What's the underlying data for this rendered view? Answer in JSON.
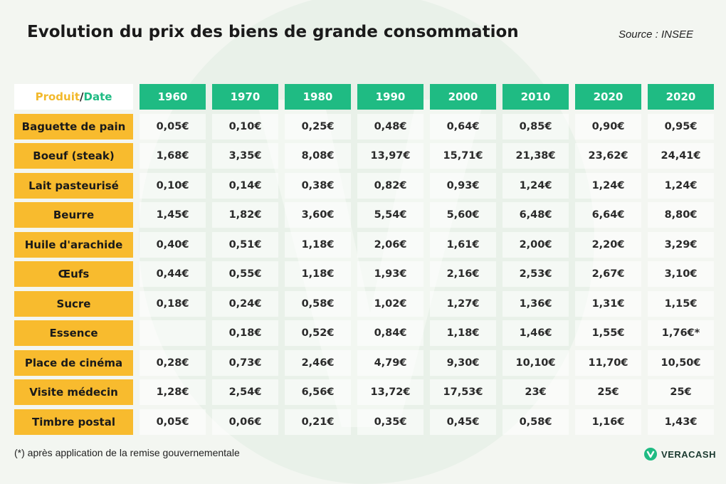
{
  "title": "Evolution du prix des biens de grande consommation",
  "source": "Source : INSEE",
  "header": {
    "product": "Produit",
    "slash": "/",
    "date": "Date"
  },
  "footnote": "(*) après application de la remise gouvernementale",
  "logo": {
    "text": "VERACASH"
  },
  "colors": {
    "green": "#1fbb83",
    "yellow": "#f8bb2e",
    "background": "#f3f6f1"
  },
  "chart_data": {
    "type": "table",
    "title": "Evolution du prix des biens de grande consommation",
    "columns": [
      "1960",
      "1970",
      "1980",
      "1990",
      "2000",
      "2010",
      "2020",
      "2020"
    ],
    "rows": [
      {
        "label": "Baguette de pain",
        "values": [
          "0,05€",
          "0,10€",
          "0,25€",
          "0,48€",
          "0,64€",
          "0,85€",
          "0,90€",
          "0,95€"
        ]
      },
      {
        "label": "Boeuf (steak)",
        "values": [
          "1,68€",
          "3,35€",
          "8,08€",
          "13,97€",
          "15,71€",
          "21,38€",
          "23,62€",
          "24,41€"
        ]
      },
      {
        "label": "Lait pasteurisé",
        "values": [
          "0,10€",
          "0,14€",
          "0,38€",
          "0,82€",
          "0,93€",
          "1,24€",
          "1,24€",
          "1,24€"
        ]
      },
      {
        "label": "Beurre",
        "values": [
          "1,45€",
          "1,82€",
          "3,60€",
          "5,54€",
          "5,60€",
          "6,48€",
          "6,64€",
          "8,80€"
        ]
      },
      {
        "label": "Huile d'arachide",
        "values": [
          "0,40€",
          "0,51€",
          "1,18€",
          "2,06€",
          "1,61€",
          "2,00€",
          "2,20€",
          "3,29€"
        ]
      },
      {
        "label": "Œufs",
        "values": [
          "0,44€",
          "0,55€",
          "1,18€",
          "1,93€",
          "2,16€",
          "2,53€",
          "2,67€",
          "3,10€"
        ]
      },
      {
        "label": "Sucre",
        "values": [
          "0,18€",
          "0,24€",
          "0,58€",
          "1,02€",
          "1,27€",
          "1,36€",
          "1,31€",
          "1,15€"
        ]
      },
      {
        "label": "Essence",
        "values": [
          "",
          "0,18€",
          "0,52€",
          "0,84€",
          "1,18€",
          "1,46€",
          "1,55€",
          "1,76€*"
        ]
      },
      {
        "label": "Place de cinéma",
        "values": [
          "0,28€",
          "0,73€",
          "2,46€",
          "4,79€",
          "9,30€",
          "10,10€",
          "11,70€",
          "10,50€"
        ]
      },
      {
        "label": "Visite médecin",
        "values": [
          "1,28€",
          "2,54€",
          "6,56€",
          "13,72€",
          "17,53€",
          "23€",
          "25€",
          "25€"
        ]
      },
      {
        "label": "Timbre postal",
        "values": [
          "0,05€",
          "0,06€",
          "0,21€",
          "0,35€",
          "0,45€",
          "0,58€",
          "1,16€",
          "1,43€"
        ]
      }
    ]
  }
}
